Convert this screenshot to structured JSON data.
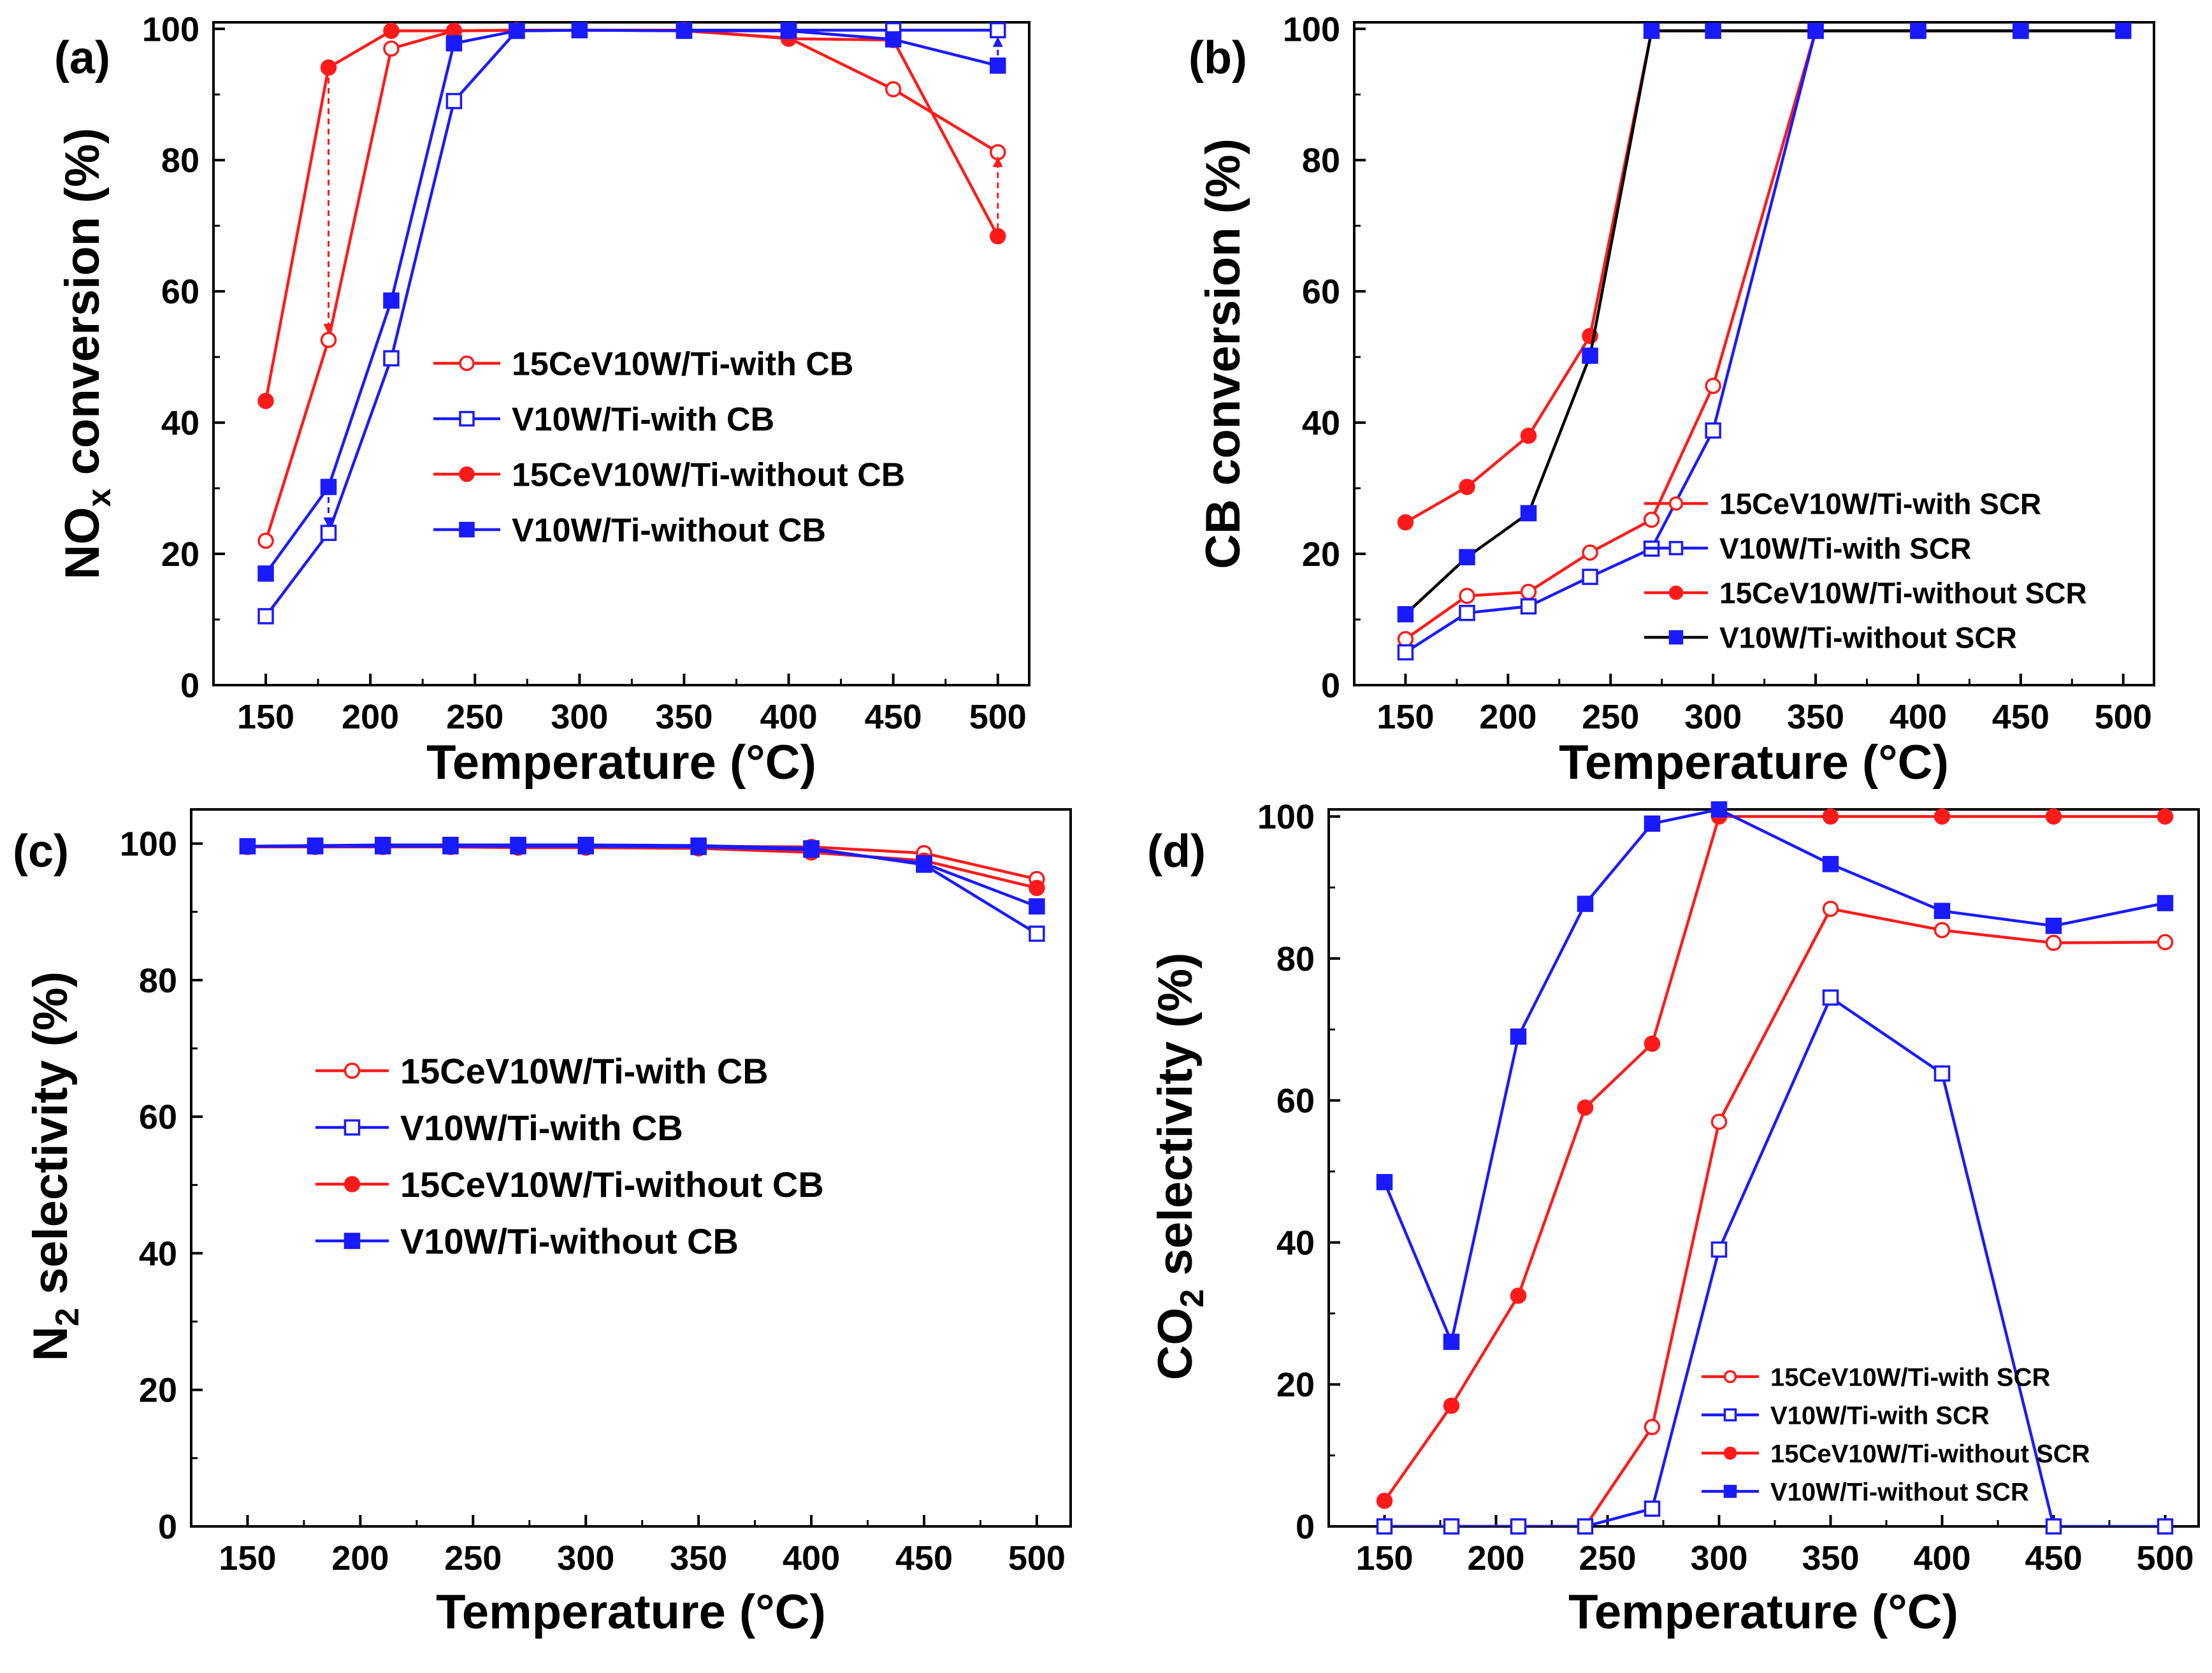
{
  "colors": {
    "red": "#ff1a1a",
    "blue": "#1a1aff",
    "black": "#000000"
  },
  "chart_data": [
    {
      "type": "line",
      "panel_label": "(a)",
      "xlabel": "Temperature (°C)",
      "ylabel_main": "NO",
      "ylabel_sub": "x",
      "ylabel_tail": " conversion (%)",
      "xlim": [
        125,
        515
      ],
      "ylim": [
        0,
        101
      ],
      "xticks": [
        150,
        200,
        250,
        300,
        350,
        400,
        450,
        500
      ],
      "yticks": [
        0,
        20,
        40,
        60,
        80,
        100
      ],
      "x": [
        150,
        180,
        210,
        240,
        270,
        300,
        350,
        400,
        450,
        500
      ],
      "legend_position": "center",
      "series": [
        {
          "name": "15CeV10W/Ti-with CB",
          "color": "red",
          "marker": "circle",
          "filled": false,
          "values": [
            22,
            52.6,
            97,
            99.7,
            99.8,
            99.8,
            99.7,
            98.6,
            90.8,
            81.2
          ]
        },
        {
          "name": "V10W/Ti-with CB",
          "color": "blue",
          "marker": "square",
          "filled": false,
          "values": [
            10.5,
            23.2,
            49.8,
            89,
            99.7,
            99.8,
            99.8,
            99.8,
            99.8,
            99.8
          ]
        },
        {
          "name": "15CeV10W/Ti-without CB",
          "color": "red",
          "marker": "circle",
          "filled": true,
          "values": [
            43.3,
            94.1,
            99.7,
            99.7,
            99.8,
            99.8,
            99.8,
            98.5,
            98.3,
            68.4
          ]
        },
        {
          "name": "V10W/Ti-without CB",
          "color": "blue",
          "marker": "square",
          "filled": true,
          "values": [
            17,
            30.2,
            58.6,
            97.8,
            99.7,
            99.8,
            99.7,
            99.7,
            98.4,
            94.4
          ]
        }
      ],
      "annotations": [
        {
          "type": "dashed-arrow",
          "color": "red",
          "x": 180,
          "from": 94.1,
          "to": 53.5
        },
        {
          "type": "dashed-arrow",
          "color": "blue",
          "x": 180,
          "from": 30.2,
          "to": 24
        },
        {
          "type": "dashed-arrow",
          "color": "red",
          "x": 500,
          "from": 69.5,
          "to": 80.5
        },
        {
          "type": "dashed-arrow",
          "color": "blue",
          "x": 500,
          "from": 94.4,
          "to": 98.8
        }
      ]
    },
    {
      "type": "line",
      "panel_label": "(b)",
      "xlabel": "Temperature (°C)",
      "ylabel_main": "CB conversion (%)",
      "ylabel_sub": "",
      "ylabel_tail": "",
      "xlim": [
        125,
        515
      ],
      "ylim": [
        0,
        101
      ],
      "xticks": [
        150,
        200,
        250,
        300,
        350,
        400,
        450,
        500
      ],
      "yticks": [
        0,
        20,
        40,
        60,
        80,
        100
      ],
      "x": [
        150,
        180,
        210,
        240,
        270,
        300,
        350,
        400,
        450,
        500
      ],
      "legend_position": "lower-right",
      "series": [
        {
          "name": "15CeV10W/Ti-with SCR",
          "color": "red",
          "line_color": "red",
          "marker": "circle",
          "filled": false,
          "values": [
            7,
            13.6,
            14.2,
            20.2,
            25.2,
            45.6,
            99.7,
            99.7,
            99.7,
            99.7
          ]
        },
        {
          "name": "V10W/Ti-with SCR",
          "color": "blue",
          "line_color": "blue",
          "marker": "square",
          "filled": false,
          "values": [
            5,
            11,
            12,
            16.5,
            20.8,
            38.8,
            99.7,
            99.7,
            99.7,
            99.7
          ]
        },
        {
          "name": "15CeV10W/Ti-without SCR",
          "color": "red",
          "line_color": "red",
          "marker": "circle",
          "filled": true,
          "values": [
            24.8,
            30.2,
            38,
            53.2,
            99.7,
            99.7,
            99.7,
            99.7,
            99.7,
            99.7
          ]
        },
        {
          "name": "V10W/Ti-without SCR",
          "color": "blue",
          "line_color": "black",
          "marker": "square",
          "filled": true,
          "values": [
            10.8,
            19.5,
            26.2,
            50.2,
            99.7,
            99.7,
            99.7,
            99.7,
            99.7,
            99.7
          ]
        }
      ]
    },
    {
      "type": "line",
      "panel_label": "(c)",
      "xlabel": "Temperature (°C)",
      "ylabel_main": "N",
      "ylabel_sub": "2",
      "ylabel_tail": " selectivity (%)",
      "xlim": [
        125,
        515
      ],
      "ylim": [
        0,
        105
      ],
      "xticks": [
        150,
        200,
        250,
        300,
        350,
        400,
        450,
        500
      ],
      "yticks": [
        0,
        20,
        40,
        60,
        80,
        100
      ],
      "x": [
        150,
        180,
        210,
        240,
        270,
        300,
        350,
        400,
        450,
        500
      ],
      "legend_position": "center-left",
      "series": [
        {
          "name": "15CeV10W/Ti-with CB",
          "color": "red",
          "marker": "circle",
          "filled": false,
          "values": [
            99.6,
            99.7,
            99.7,
            99.7,
            99.7,
            99.6,
            99.6,
            99.5,
            98.6,
            94.8
          ]
        },
        {
          "name": "V10W/Ti-with CB",
          "color": "blue",
          "marker": "square",
          "filled": false,
          "values": [
            99.6,
            99.7,
            99.8,
            99.8,
            99.8,
            99.8,
            99.7,
            99.3,
            96.9,
            86.8
          ]
        },
        {
          "name": "15CeV10W/Ti-without CB",
          "color": "red",
          "marker": "circle",
          "filled": true,
          "values": [
            99.5,
            99.5,
            99.5,
            99.5,
            99.4,
            99.4,
            99.3,
            98.7,
            97.5,
            93.5
          ]
        },
        {
          "name": "V10W/Ti-without CB",
          "color": "blue",
          "marker": "square",
          "filled": true,
          "values": [
            99.6,
            99.6,
            99.6,
            99.6,
            99.6,
            99.6,
            99.5,
            99.1,
            97.1,
            90.8
          ]
        }
      ]
    },
    {
      "type": "line",
      "panel_label": "(d)",
      "xlabel": "Temperature (°C)",
      "ylabel_main": "CO",
      "ylabel_sub": "2",
      "ylabel_tail": " selectivity (%)",
      "xlim": [
        125,
        515
      ],
      "ylim": [
        0,
        101
      ],
      "xticks": [
        150,
        200,
        250,
        300,
        350,
        400,
        450,
        500
      ],
      "yticks": [
        0,
        20,
        40,
        60,
        80,
        100
      ],
      "x": [
        150,
        180,
        210,
        240,
        270,
        300,
        350,
        400,
        450,
        500
      ],
      "legend_position": "lower-right",
      "series": [
        {
          "name": "15CeV10W/Ti-with SCR",
          "color": "red",
          "marker": "circle",
          "filled": false,
          "values": [
            0,
            0,
            0,
            0,
            14,
            57,
            87,
            84,
            82.2,
            82.3
          ]
        },
        {
          "name": "V10W/Ti-with SCR",
          "color": "blue",
          "marker": "square",
          "filled": false,
          "values": [
            0,
            0,
            0,
            0,
            2.5,
            39,
            74.5,
            63.8,
            0,
            0
          ]
        },
        {
          "name": "15CeV10W/Ti-without SCR",
          "color": "red",
          "marker": "circle",
          "filled": true,
          "values": [
            3.6,
            17,
            32.5,
            59,
            68,
            100,
            100,
            100,
            100,
            100
          ]
        },
        {
          "name": "V10W/Ti-without SCR",
          "color": "blue",
          "marker": "square",
          "filled": true,
          "values": [
            48.5,
            26,
            69,
            87.7,
            99,
            101,
            93.3,
            86.7,
            84.6,
            87.8
          ]
        }
      ]
    }
  ]
}
